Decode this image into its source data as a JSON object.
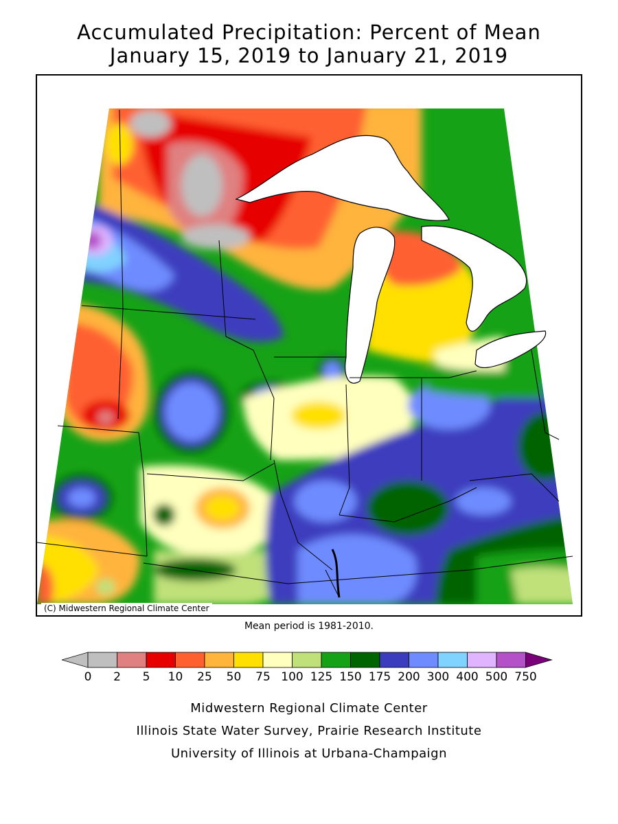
{
  "title": {
    "line1": "Accumulated Precipitation: Percent of Mean",
    "line2": "January 15, 2019 to January 21, 2019"
  },
  "map": {
    "copyright": "(C) Midwestern Regional Climate Center",
    "mean_period": "Mean period is 1981-2010."
  },
  "legend": {
    "unit": "percent of mean",
    "bins": [
      {
        "label": "0",
        "color": "#bfbfbf"
      },
      {
        "label": "2",
        "color": "#e08080"
      },
      {
        "label": "5",
        "color": "#e60000"
      },
      {
        "label": "10",
        "color": "#ff6030"
      },
      {
        "label": "25",
        "color": "#ffb43c"
      },
      {
        "label": "50",
        "color": "#ffe000"
      },
      {
        "label": "75",
        "color": "#ffffbe"
      },
      {
        "label": "100",
        "color": "#c0e07a"
      },
      {
        "label": "125",
        "color": "#16a216"
      },
      {
        "label": "150",
        "color": "#006400"
      },
      {
        "label": "175",
        "color": "#3c3cbe"
      },
      {
        "label": "200",
        "color": "#6e8cff"
      },
      {
        "label": "300",
        "color": "#80d2ff"
      },
      {
        "label": "400",
        "color": "#e0b4ff"
      },
      {
        "label": "500",
        "color": "#b450c8"
      },
      {
        "label": "750",
        "color": "#7a007a"
      }
    ],
    "low_arrow_color": "#bfbfbf",
    "high_arrow_color": "#7a007a"
  },
  "credits": {
    "line1": "Midwestern Regional Climate Center",
    "line2": "Illinois State Water Survey, Prairie Research Institute",
    "line3": "University of Illinois at Urbana-Champaign"
  }
}
